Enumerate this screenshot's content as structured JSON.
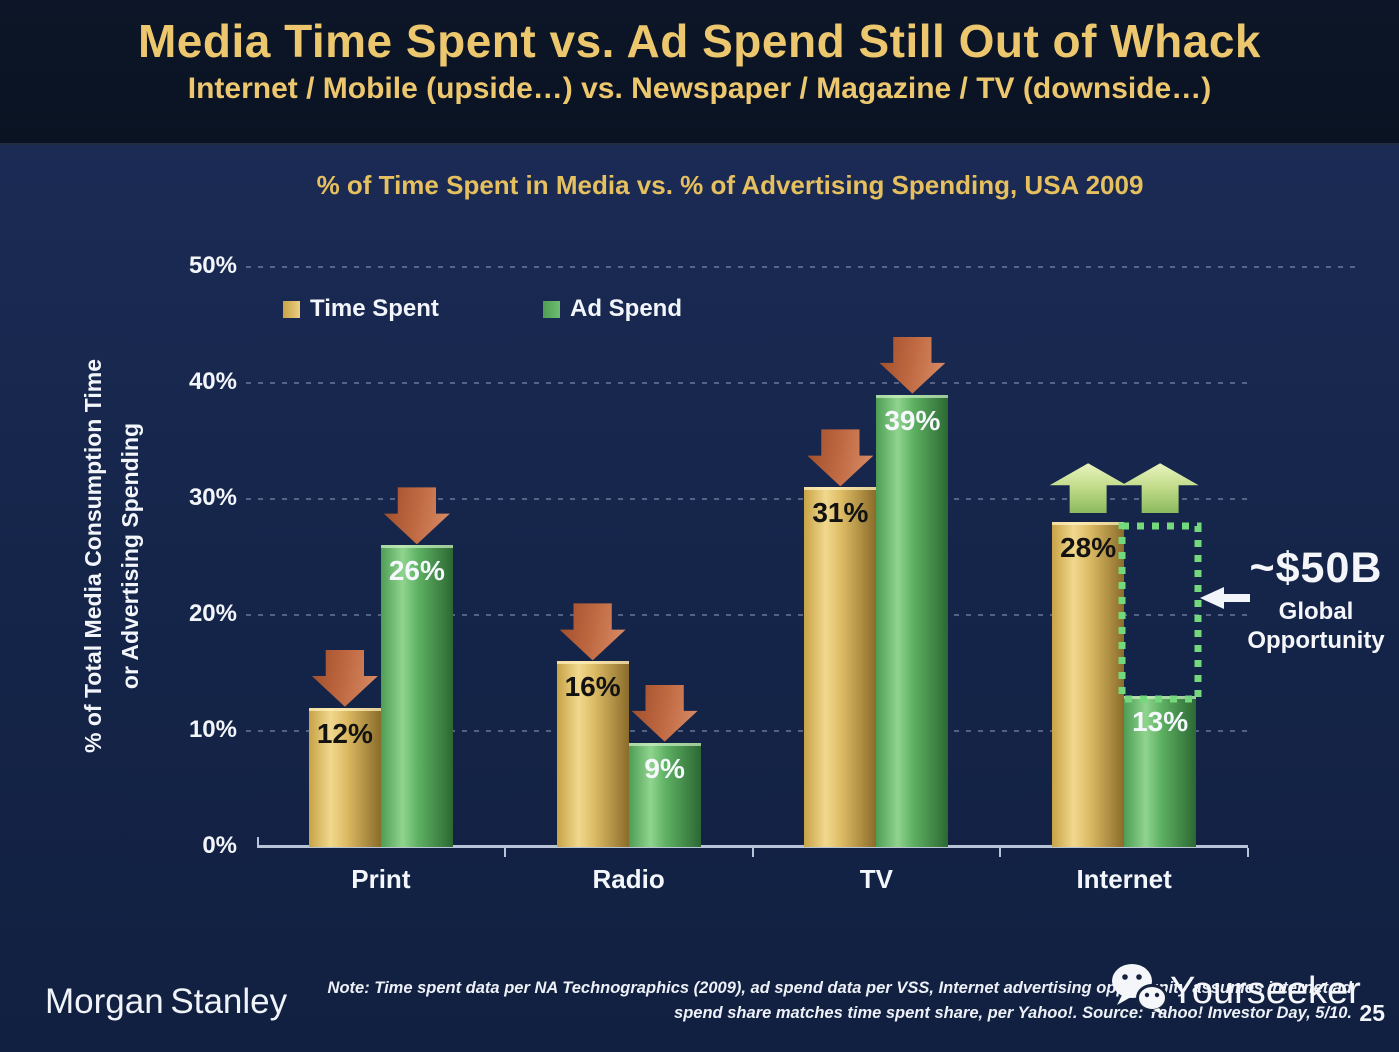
{
  "slide": {
    "title": "Media Time Spent vs. Ad Spend Still Out of Whack",
    "subtitle": "Internet / Mobile (upside…) vs. Newspaper / Magazine / TV (downside…)"
  },
  "chart_data": {
    "type": "bar",
    "title": "% of Time Spent in Media vs. % of Advertising Spending, USA 2009",
    "categories": [
      "Print",
      "Radio",
      "TV",
      "Internet"
    ],
    "series": [
      {
        "name": "Time Spent",
        "color": "#d9b459",
        "values": [
          12,
          16,
          31,
          28
        ]
      },
      {
        "name": "Ad Spend",
        "color": "#56a95c",
        "values": [
          26,
          9,
          39,
          13
        ]
      }
    ],
    "value_label_format": "{v}%",
    "ylabel_lines": [
      "% of Total Media Consumption Time",
      "or Advertising Spending"
    ],
    "yticks": [
      "0%",
      "10%",
      "20%",
      "30%",
      "40%",
      "50%"
    ],
    "ylim": [
      0,
      50
    ],
    "grid": "dashed-horizontal",
    "legend_position": "top-left-inside",
    "trend_arrows": {
      "down": [
        "Print",
        "Radio",
        "TV"
      ],
      "up": [
        "Internet"
      ]
    },
    "gap_annotation": {
      "category": "Internet",
      "series": "Ad Spend",
      "from_value": 13,
      "to_value": 28,
      "value": "~$50B",
      "caption_line1": "Global",
      "caption_line2": "Opportunity"
    }
  },
  "footer": {
    "logo": "Morgan Stanley",
    "note_line1": "Note: Time spent data per NA Technographics (2009), ad spend data per VSS, Internet advertising opportunity assumes internet ad",
    "note_line2": "spend share matches time spent share, per Yahoo!. Source: Yahoo! Investor Day, 5/10.",
    "page_number": "25"
  },
  "watermark": {
    "label": "Yourseeker",
    "icon": "wechat-icon"
  },
  "colors": {
    "header_bg": "#0a1322",
    "body_bg": "#16264c",
    "title_gold": "#ecc76e",
    "chart_title_gold": "#e6c05e",
    "bar_gold": "#d9b459",
    "bar_green": "#56a95c",
    "down_arrow": "#c06a42",
    "up_arrow": "#c2dc8a",
    "dotted_box_green": "#74d97c",
    "axis_line": "#b7c4d8",
    "text_white": "#f2f5fa",
    "value_label_on_gold": "#121212",
    "value_label_on_green": "#f5f8fc"
  }
}
